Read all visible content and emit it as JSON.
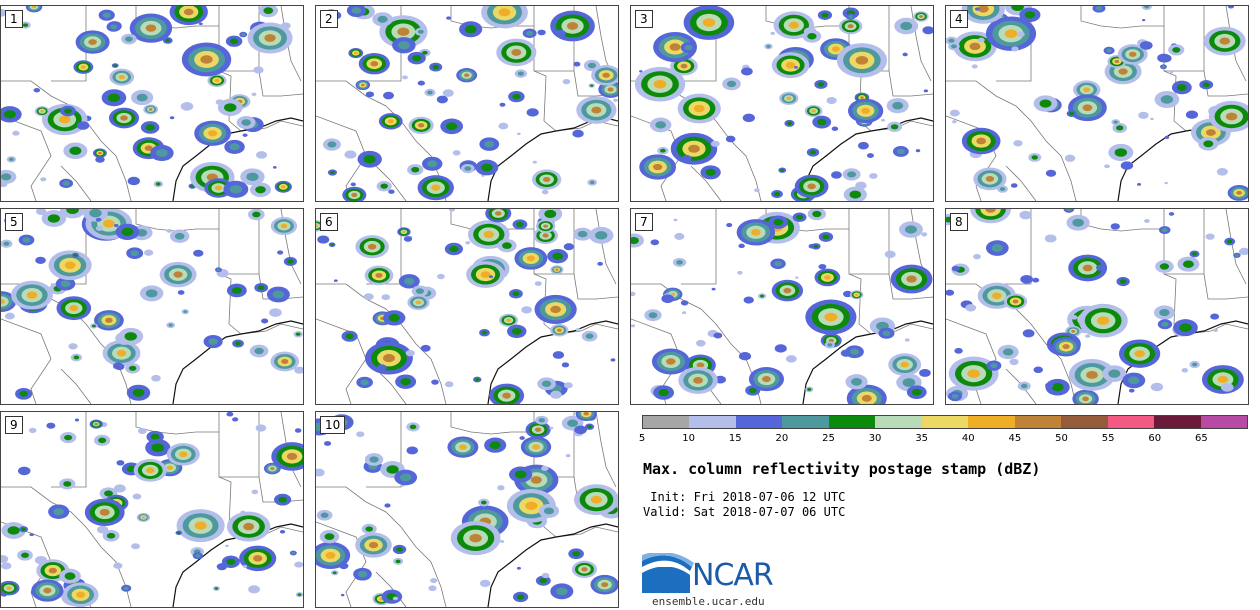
{
  "panels": [
    {
      "label": "1"
    },
    {
      "label": "2"
    },
    {
      "label": "3"
    },
    {
      "label": "4"
    },
    {
      "label": "5"
    },
    {
      "label": "6"
    },
    {
      "label": "7"
    },
    {
      "label": "8"
    },
    {
      "label": "9"
    },
    {
      "label": "10"
    }
  ],
  "colorbar": {
    "colors": [
      "#a6a6a6",
      "#b3bfea",
      "#5566d8",
      "#4e999e",
      "#0b8a0b",
      "#b8dcb8",
      "#ecd965",
      "#f0ad27",
      "#bf8236",
      "#955c3c",
      "#f25a84",
      "#6c1a3a",
      "#b64aa5"
    ],
    "ticks": [
      "5",
      "10",
      "15",
      "20",
      "25",
      "30",
      "35",
      "40",
      "45",
      "50",
      "55",
      "60",
      "65"
    ]
  },
  "title": "Max. column reflectivity postage stamp (dBZ)",
  "init": " Init: Fri 2018-07-06 12 UTC",
  "valid": "Valid: Sat 2018-07-07 06 UTC",
  "logo": {
    "text": "NCAR",
    "url": "ensemble.ucar.edu"
  }
}
